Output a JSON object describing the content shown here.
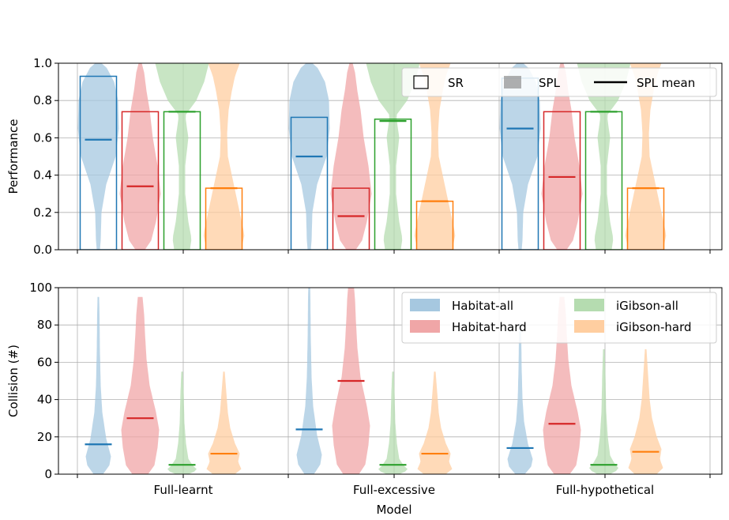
{
  "colors": {
    "habitat_all": "#1f77b4",
    "habitat_hard": "#d62728",
    "igibson_all": "#2ca02c",
    "igibson_hard": "#ff7f0e",
    "habitat_all_fill": "#a6c8e0",
    "habitat_hard_fill": "#f0a6a7",
    "igibson_all_fill": "#b5dcb0",
    "igibson_hard_fill": "#ffcea0"
  },
  "chart_data": [
    {
      "type": "violin+bar",
      "ylabel": "Performance",
      "ylim": [
        0,
        1.0
      ],
      "yticks": [
        "0.0",
        "0.2",
        "0.4",
        "0.6",
        "0.8",
        "1.0"
      ],
      "grid": true,
      "legend": {
        "placement": "top-right",
        "entries": [
          "SR",
          "SPL",
          "SPL mean"
        ]
      },
      "categories": [
        "Full-learnt",
        "Full-excessive",
        "Full-hypothetical"
      ],
      "series": [
        {
          "name": "Habitat-all",
          "color_key": "habitat_all",
          "sr": [
            0.93,
            0.71,
            0.92
          ],
          "spl_mean": [
            0.59,
            0.5,
            0.65
          ]
        },
        {
          "name": "Habitat-hard",
          "color_key": "habitat_hard",
          "sr": [
            0.74,
            0.33,
            0.74
          ],
          "spl_mean": [
            0.34,
            0.18,
            0.39
          ]
        },
        {
          "name": "iGibson-all",
          "color_key": "igibson_all",
          "sr": [
            0.74,
            0.7,
            0.74
          ],
          "spl_mean": [
            0.74,
            0.69,
            0.74
          ]
        },
        {
          "name": "iGibson-hard",
          "color_key": "igibson_hard",
          "sr": [
            0.33,
            0.26,
            0.33
          ],
          "spl_mean": [
            0.33,
            0.26,
            0.33
          ]
        }
      ]
    },
    {
      "type": "violin",
      "xlabel": "Model",
      "ylabel": "Collision (#)",
      "ylim": [
        0,
        100
      ],
      "yticks": [
        "0",
        "20",
        "40",
        "60",
        "80",
        "100"
      ],
      "grid": true,
      "legend": {
        "placement": "top-right",
        "entries": [
          "Habitat-all",
          "Habitat-hard",
          "iGibson-all",
          "iGibson-hard"
        ]
      },
      "categories": [
        "Full-learnt",
        "Full-excessive",
        "Full-hypothetical"
      ],
      "series": [
        {
          "name": "Habitat-all",
          "color_key": "habitat_all",
          "mean": [
            16,
            24,
            14
          ],
          "max": [
            91,
            100,
            77
          ]
        },
        {
          "name": "Habitat-hard",
          "color_key": "habitat_hard",
          "mean": [
            30,
            50,
            27
          ],
          "max": [
            91,
            100,
            91
          ]
        },
        {
          "name": "iGibson-all",
          "color_key": "igibson_all",
          "mean": [
            5,
            5,
            5
          ],
          "max": [
            51,
            51,
            63
          ]
        },
        {
          "name": "iGibson-hard",
          "color_key": "igibson_hard",
          "mean": [
            11,
            11,
            12
          ],
          "max": [
            51,
            51,
            63
          ]
        }
      ]
    }
  ]
}
